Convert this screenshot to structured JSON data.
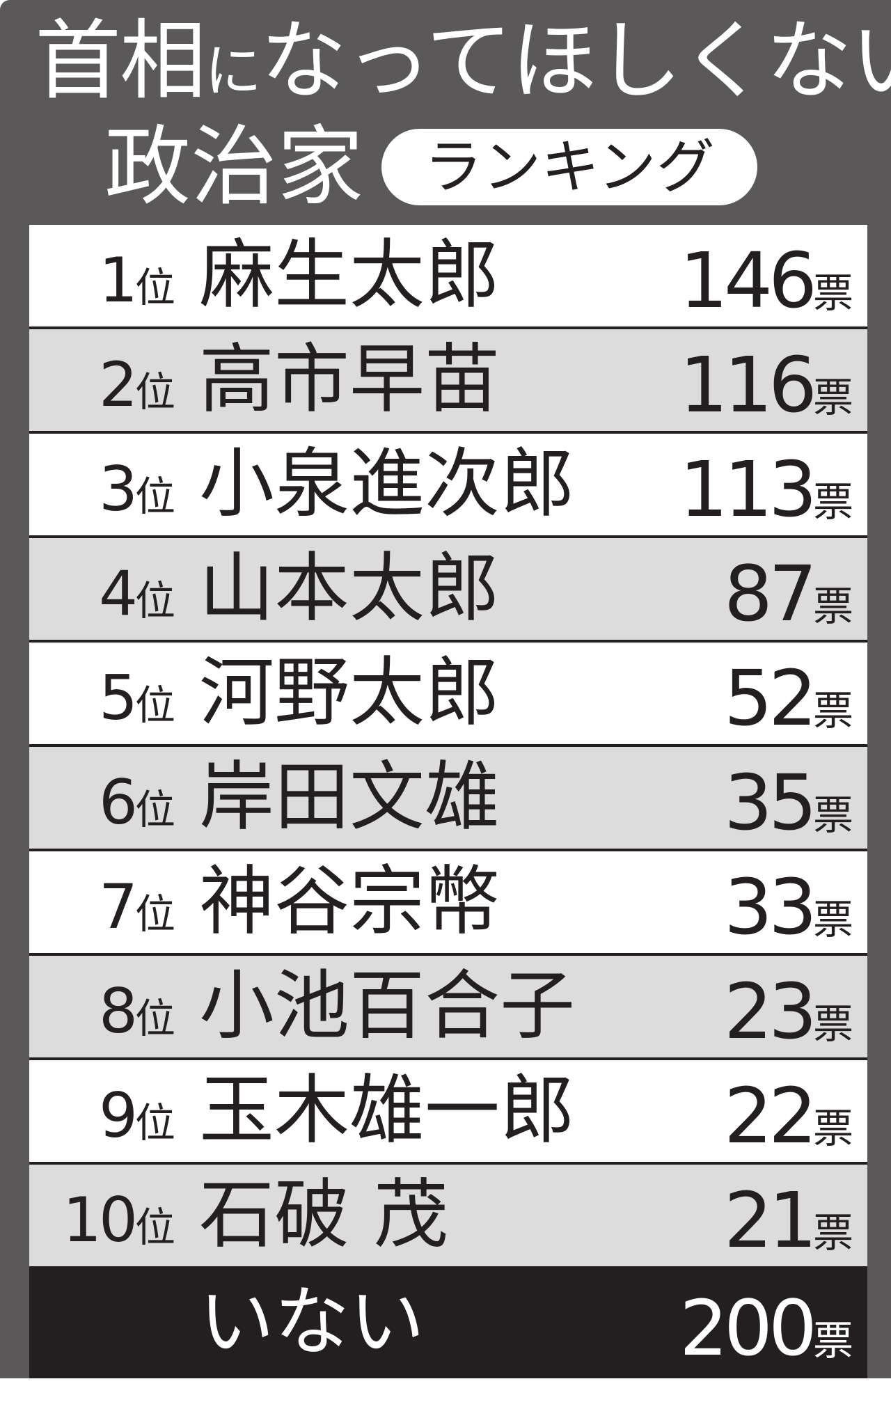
{
  "title": {
    "line1_part1": "首相",
    "line1_part2": "に",
    "line1_part3": "なってほしくない",
    "line2": "政治家",
    "badge": "ランキング"
  },
  "colors": {
    "panel": "#5a5859",
    "row_light": "#ffffff",
    "row_shaded": "#dcdcdc",
    "footer": "#231f20",
    "text_dark": "#231f20"
  },
  "chart_data": {
    "type": "table",
    "title": "首相になってほしくない政治家ランキング",
    "rank_unit": "位",
    "vote_unit": "票",
    "rows": [
      {
        "rank": "1",
        "name": "麻生太郎",
        "votes": "146"
      },
      {
        "rank": "2",
        "name": "高市早苗",
        "votes": "116"
      },
      {
        "rank": "3",
        "name": "小泉進次郎",
        "votes": "113"
      },
      {
        "rank": "4",
        "name": "山本太郎",
        "votes": "87"
      },
      {
        "rank": "5",
        "name": "河野太郎",
        "votes": "52"
      },
      {
        "rank": "6",
        "name": "岸田文雄",
        "votes": "35"
      },
      {
        "rank": "7",
        "name": "神谷宗幣",
        "votes": "33"
      },
      {
        "rank": "8",
        "name": "小池百合子",
        "votes": "23"
      },
      {
        "rank": "9",
        "name": "玉木雄一郎",
        "votes": "22"
      },
      {
        "rank": "10",
        "name": "石破 茂",
        "votes": "21"
      }
    ],
    "footer": {
      "name": "いない",
      "votes": "200"
    }
  }
}
